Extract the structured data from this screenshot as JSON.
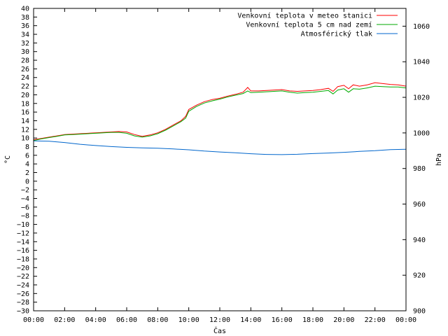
{
  "chart_data": {
    "type": "line",
    "xlabel": "Čas",
    "ylabel": "°C",
    "y2label": "hPa",
    "ylim": [
      -30,
      40
    ],
    "y2lim": [
      900,
      1070
    ],
    "xlim": [
      0,
      24
    ],
    "x_ticks": [
      "00:00",
      "02:00",
      "04:00",
      "06:00",
      "08:00",
      "10:00",
      "12:00",
      "14:00",
      "16:00",
      "18:00",
      "20:00",
      "22:00",
      "00:00"
    ],
    "y_ticks": [
      "-30",
      "-28",
      "-26",
      "-24",
      "-22",
      "-20",
      "-18",
      "-16",
      "-14",
      "-12",
      "-10",
      "-8",
      "-6",
      "-4",
      "-2",
      "0",
      "2",
      "4",
      "6",
      "8",
      "10",
      "12",
      "14",
      "16",
      "18",
      "20",
      "22",
      "24",
      "26",
      "28",
      "30",
      "32",
      "34",
      "36",
      "38",
      "40"
    ],
    "y2_ticks": [
      "900",
      "920",
      "940",
      "960",
      "980",
      "1000",
      "1020",
      "1040",
      "1060"
    ],
    "grid": false,
    "legend_position": "top-right",
    "series": [
      {
        "name": "Venkovní teplota v meteo stanici",
        "axis": "left",
        "color": "#ff0000",
        "x": [
          0,
          0.5,
          1,
          1.5,
          2,
          2.5,
          3,
          3.5,
          4,
          4.5,
          5,
          5.5,
          6,
          6.5,
          7,
          7.5,
          8,
          8.5,
          9,
          9.5,
          9.8,
          10,
          10.5,
          11,
          11.5,
          12,
          12.5,
          13,
          13.5,
          13.8,
          14,
          14.5,
          15,
          15.5,
          16,
          16.5,
          17,
          17.5,
          18,
          18.5,
          19,
          19.3,
          19.6,
          20,
          20.3,
          20.6,
          21,
          21.5,
          22,
          22.5,
          23,
          23.5,
          24
        ],
        "values": [
          9.6,
          9.9,
          10.2,
          10.5,
          10.8,
          10.9,
          11.0,
          11.1,
          11.2,
          11.3,
          11.4,
          11.5,
          11.4,
          10.8,
          10.4,
          10.7,
          11.2,
          12.0,
          13.0,
          14.0,
          15.0,
          16.6,
          17.6,
          18.4,
          18.9,
          19.2,
          19.7,
          20.1,
          20.6,
          21.7,
          20.9,
          20.9,
          21.0,
          21.1,
          21.2,
          20.9,
          20.8,
          20.9,
          21.0,
          21.2,
          21.5,
          20.8,
          21.9,
          22.2,
          21.4,
          22.3,
          22.0,
          22.3,
          22.8,
          22.6,
          22.4,
          22.3,
          22.0
        ]
      },
      {
        "name": "Venkovní teplota 5 cm nad zemí",
        "axis": "left",
        "color": "#00aa00",
        "x": [
          0,
          0.5,
          1,
          1.5,
          2,
          2.5,
          3,
          3.5,
          4,
          4.5,
          5,
          5.5,
          6,
          6.5,
          7,
          7.5,
          8,
          8.5,
          9,
          9.5,
          9.8,
          10,
          10.5,
          11,
          11.5,
          12,
          12.5,
          13,
          13.5,
          13.8,
          14,
          14.5,
          15,
          15.5,
          16,
          16.5,
          17,
          17.5,
          18,
          18.5,
          19,
          19.3,
          19.6,
          20,
          20.3,
          20.6,
          21,
          21.5,
          22,
          22.5,
          23,
          23.5,
          24
        ],
        "values": [
          9.4,
          9.8,
          10.1,
          10.4,
          10.7,
          10.8,
          10.9,
          11.0,
          11.1,
          11.2,
          11.3,
          11.3,
          11.1,
          10.5,
          10.2,
          10.5,
          11.0,
          11.8,
          12.8,
          13.8,
          14.6,
          16.2,
          17.3,
          18.1,
          18.6,
          19.0,
          19.5,
          19.9,
          20.3,
          20.9,
          20.5,
          20.6,
          20.7,
          20.8,
          20.9,
          20.6,
          20.4,
          20.5,
          20.6,
          20.8,
          21.0,
          20.2,
          21.1,
          21.4,
          20.6,
          21.4,
          21.3,
          21.6,
          22.0,
          21.9,
          21.8,
          21.8,
          21.6
        ]
      },
      {
        "name": "Atmosférický tlak",
        "axis": "right",
        "color": "#0066cc",
        "x": [
          0,
          1,
          2,
          3,
          4,
          5,
          6,
          7,
          8,
          9,
          10,
          11,
          12,
          13,
          14,
          15,
          16,
          17,
          18,
          19,
          20,
          21,
          22,
          23,
          24
        ],
        "values": [
          995.5,
          995.3,
          994.6,
          993.6,
          992.9,
          992.3,
          991.9,
          991.6,
          991.4,
          991.0,
          990.5,
          989.8,
          989.3,
          988.8,
          988.3,
          987.9,
          987.8,
          988.0,
          988.4,
          988.7,
          989.1,
          989.6,
          990.0,
          990.6,
          990.8
        ]
      }
    ]
  }
}
